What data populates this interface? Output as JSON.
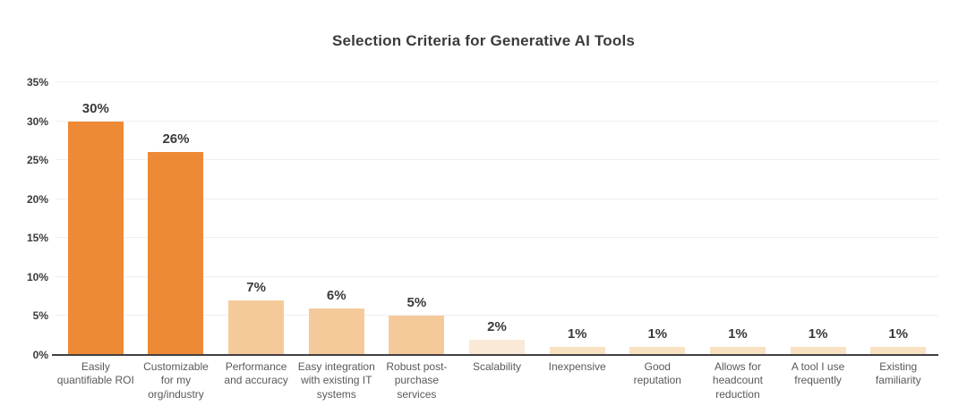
{
  "chart_data": {
    "type": "bar",
    "title": "Selection Criteria for Generative AI Tools",
    "categories": [
      "Easily quantifiable ROI",
      "Customizable for my org/industry",
      "Performance and accuracy",
      "Easy integration with existing IT systems",
      "Robust post-purchase services",
      "Scalability",
      "Inexpensive",
      "Good reputation",
      "Allows for headcount reduction",
      "A tool I use frequently",
      "Existing familiarity"
    ],
    "category_display": [
      "Easily\nquantifiable ROI",
      "Customizable\nfor my\norg/industry",
      "Performance\nand accuracy",
      "Easy integration\nwith existing IT\nsystems",
      "Robust post-\npurchase\nservices",
      "Scalability",
      "Inexpensive",
      "Good\nreputation",
      "Allows for\nheadcount\nreduction",
      "A tool I use\nfrequently",
      "Existing\nfamiliarity"
    ],
    "values": [
      30,
      26,
      7,
      6,
      5,
      2,
      1,
      1,
      1,
      1,
      1
    ],
    "value_labels": [
      "30%",
      "26%",
      "7%",
      "6%",
      "5%",
      "2%",
      "1%",
      "1%",
      "1%",
      "1%",
      "1%"
    ],
    "bar_colors": [
      "#ee8a35",
      "#ee8a35",
      "#f5ca9b",
      "#f5ca9b",
      "#f5ca9b",
      "#fae9d6",
      "#f8e2c2",
      "#f8e2c2",
      "#f8e2c2",
      "#f8e2c2",
      "#f8e2c2"
    ],
    "xlabel": "",
    "ylabel": "",
    "ylim": [
      0,
      35
    ],
    "yticks": [
      "0%",
      "5%",
      "10%",
      "15%",
      "20%",
      "25%",
      "30%",
      "35%"
    ],
    "grid": true,
    "legend": false,
    "colors": {
      "bar_high": "#ee8a35",
      "bar_mid": "#f5ca9b",
      "bar_low": "#fae9d6",
      "bar_min": "#f8e2c2",
      "axis_line": "#414042",
      "grid_line": "#f0f0f0",
      "title_text": "#3b3b3d",
      "tick_text": "#3b3b3b",
      "category_text": "#58595b",
      "background": "#ffffff"
    }
  }
}
